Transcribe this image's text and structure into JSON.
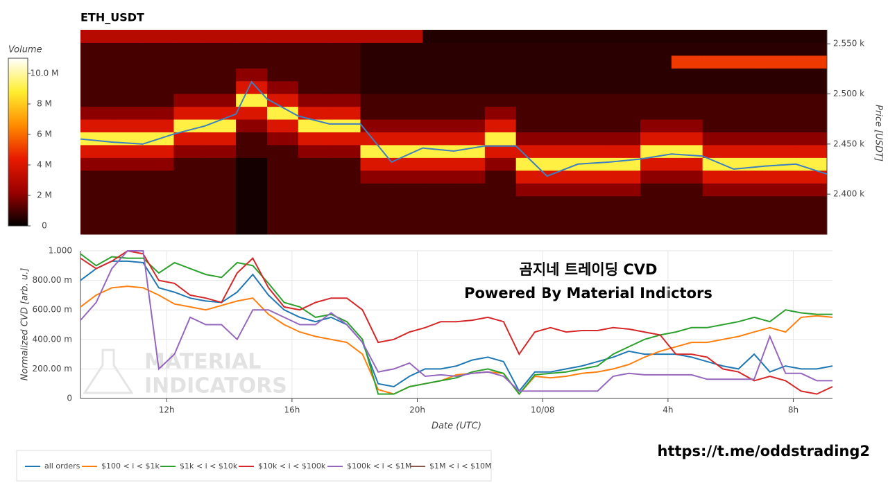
{
  "chart_data": [
    {
      "type": "heatmap",
      "title": "ETH_USDT",
      "y_label": "Price [USDT]",
      "colorbar_title": "Volume",
      "x_bins": [
        9.25,
        10.25,
        11.25,
        12.25,
        13.25,
        14.25,
        15.25,
        16.25,
        17.25,
        18.25,
        19.25,
        20.25,
        21.25,
        22.25,
        23.25,
        24.25,
        25.25,
        26.25,
        27.25,
        28.25,
        29.25,
        30.25,
        31.25,
        32.25,
        33.25
      ],
      "y_bins": [
        2360,
        2372.75,
        2385.5,
        2398.25,
        2411,
        2423.75,
        2436.5,
        2449.25,
        2462,
        2474.75,
        2487.5,
        2500.25,
        2513,
        2525.75,
        2538.5,
        2551.25,
        2564
      ],
      "z": [
        [
          1,
          1,
          1,
          1,
          1,
          0.3,
          1,
          1,
          1,
          1,
          1,
          1,
          1,
          1,
          1,
          1,
          1,
          1,
          1,
          1,
          1,
          1,
          1,
          1
        ],
        [
          1,
          1,
          1,
          1,
          1,
          0.3,
          1,
          1,
          1,
          1,
          1,
          1,
          1,
          1,
          1,
          1,
          1,
          1,
          1,
          1,
          1,
          1,
          1,
          1
        ],
        [
          1,
          1,
          1,
          1,
          1,
          0.3,
          1,
          1,
          1,
          1,
          1,
          1,
          1,
          1,
          1,
          1,
          1,
          1,
          1,
          1,
          1,
          1,
          1,
          1
        ],
        [
          1,
          1,
          1,
          1,
          1,
          0.3,
          1,
          1,
          1,
          1,
          1,
          1,
          1,
          1,
          2,
          2,
          2,
          2,
          1,
          1,
          2,
          2,
          2,
          2
        ],
        [
          1,
          1,
          1,
          1,
          1,
          0.3,
          1,
          1,
          1,
          2,
          2,
          2,
          2,
          1,
          4,
          4,
          4,
          4,
          2,
          2,
          4,
          4,
          4,
          4
        ],
        [
          2,
          2,
          2,
          1,
          1,
          0.3,
          1,
          1,
          1,
          4,
          4,
          4,
          4,
          2,
          9,
          9,
          9,
          9,
          4,
          4,
          9,
          9,
          9,
          9
        ],
        [
          4,
          4,
          4,
          2,
          2,
          1,
          1,
          2,
          2,
          9,
          9,
          9,
          9,
          4,
          4,
          4,
          4,
          4,
          9,
          9,
          4,
          4,
          4,
          4
        ],
        [
          9,
          9,
          9,
          4,
          4,
          1,
          2,
          4,
          4,
          4,
          4,
          4,
          4,
          9,
          2,
          2,
          2,
          2,
          4,
          4,
          2,
          2,
          2,
          2
        ],
        [
          4,
          4,
          4,
          9,
          9,
          2,
          4,
          9,
          9,
          2,
          2,
          2,
          2,
          4,
          1,
          1,
          1,
          1,
          2,
          2,
          1,
          1,
          1,
          1
        ],
        [
          2,
          2,
          2,
          4,
          4,
          4,
          9,
          4,
          4,
          1,
          1,
          1,
          1,
          2,
          1,
          1,
          1,
          1,
          1,
          1,
          1,
          1,
          1,
          1
        ],
        [
          1,
          1,
          1,
          2,
          2,
          9,
          4,
          2,
          2,
          1,
          1,
          1,
          1,
          1,
          1,
          1,
          1,
          1,
          1,
          1,
          1,
          1,
          1,
          1
        ],
        [
          1,
          1,
          1,
          1,
          1,
          4,
          2,
          1,
          1,
          0.6,
          0.6,
          0.6,
          0.6,
          0.6,
          0.6,
          0.6,
          0.6,
          0.6,
          0.6,
          0.6,
          0.6,
          0.6,
          0.6,
          0.6
        ],
        [
          1,
          1,
          1,
          1,
          1,
          2,
          1,
          1,
          1,
          0.6,
          0.6,
          0.6,
          0.6,
          0.6,
          0.6,
          0.6,
          0.6,
          0.6,
          0.6,
          0.6,
          0.6,
          0.6,
          0.6,
          0.6
        ],
        [
          1,
          1,
          1,
          1,
          1,
          1,
          1,
          1,
          1,
          0.6,
          0.6,
          0.6,
          0.6,
          0.6,
          0.6,
          0.6,
          0.6,
          0.6,
          0.6,
          5,
          5,
          5,
          5,
          5
        ],
        [
          1,
          1,
          1,
          1,
          1,
          1,
          1,
          1,
          1,
          0.6,
          0.6,
          0.6,
          0.6,
          0.6,
          0.6,
          0.6,
          0.6,
          0.6,
          0.6,
          0.6,
          0.6,
          0.6,
          0.6,
          0.6
        ],
        [
          3,
          3,
          3,
          3,
          3,
          3,
          3,
          3,
          3,
          3,
          3,
          0.5,
          0.5,
          0.5,
          0.5,
          0.5,
          0.5,
          0.5,
          0.5,
          0.5,
          0.5,
          0.5,
          0.5,
          0.5
        ]
      ],
      "zlim": [
        0,
        11
      ],
      "zticks": [
        0,
        {
          "value": 2,
          "label": "2 M"
        },
        {
          "value": 4,
          "label": "4 M"
        },
        {
          "value": 6,
          "label": "6 M"
        },
        {
          "value": 8,
          "label": "8 M"
        },
        {
          "value": 10,
          "label": "10.0 M"
        }
      ],
      "colorscale": [
        "#000000",
        "#9a0000",
        "#e81a00",
        "#ff8c00",
        "#ffee30",
        "#ffffff"
      ],
      "ylim": [
        2360,
        2564
      ],
      "yticks": [
        {
          "value": 2400,
          "label": "2.400 k"
        },
        {
          "value": 2450,
          "label": "2.450 k"
        },
        {
          "value": 2500,
          "label": "2.500 k"
        },
        {
          "value": 2550,
          "label": "2.550 k"
        }
      ],
      "price_line": {
        "color": "#3d7fbf",
        "x": [
          9.25,
          10.25,
          11.25,
          12.25,
          13.25,
          14.25,
          14.75,
          15.25,
          16.25,
          17.25,
          18.25,
          19.25,
          20.25,
          21.25,
          22.25,
          23.25,
          24.25,
          25.25,
          26.25,
          27.25,
          28.25,
          29.25,
          30.25,
          31.25,
          32.25,
          33.25
        ],
        "values": [
          2455,
          2452,
          2450,
          2460,
          2468,
          2480,
          2512,
          2495,
          2478,
          2470,
          2470,
          2432,
          2446,
          2443,
          2448,
          2448,
          2418,
          2430,
          2432,
          2435,
          2440,
          2438,
          2425,
          2428,
          2430,
          2420
        ]
      }
    },
    {
      "type": "line",
      "y_label": "Normalized CVD [arb. u.]",
      "x_label": "Date (UTC)",
      "annotations": [
        "곰지네 트레이딩 CVD",
        "Powered By Material Indictors"
      ],
      "watermark": [
        "MATERIAL",
        "INDICATORS"
      ],
      "xlim": [
        9.25,
        33.25
      ],
      "xticks": [
        {
          "value": 12,
          "label": "12h"
        },
        {
          "value": 16,
          "label": "16h"
        },
        {
          "value": 20,
          "label": "20h"
        },
        {
          "value": 24,
          "label": "10/08"
        },
        {
          "value": 28,
          "label": "4h"
        },
        {
          "value": 32,
          "label": "8h"
        }
      ],
      "ylim": [
        0,
        1
      ],
      "yticks": [
        0,
        {
          "value": 0.2,
          "label": "200.00 m"
        },
        {
          "value": 0.4,
          "label": "400.00 m"
        },
        {
          "value": 0.6,
          "label": "600.00 m"
        },
        {
          "value": 0.8,
          "label": "800.00 m"
        },
        {
          "value": 1,
          "label": "1.000"
        }
      ],
      "grid": true,
      "x": [
        9.25,
        9.75,
        10.25,
        10.75,
        11.25,
        11.75,
        12.25,
        12.75,
        13.25,
        13.75,
        14.25,
        14.75,
        15.25,
        15.75,
        16.25,
        16.75,
        17.25,
        17.75,
        18.25,
        18.75,
        19.25,
        19.75,
        20.25,
        20.75,
        21.25,
        21.75,
        22.25,
        22.75,
        23.25,
        23.75,
        24.25,
        24.75,
        25.25,
        25.75,
        26.25,
        26.75,
        27.25,
        27.75,
        28.25,
        28.75,
        29.25,
        29.75,
        30.25,
        30.75,
        31.25,
        31.75,
        32.25,
        32.75,
        33.25
      ],
      "series": [
        {
          "name": "all orders",
          "color": "#1f77b4",
          "values": [
            0.8,
            0.88,
            0.93,
            0.93,
            0.92,
            0.75,
            0.72,
            0.68,
            0.66,
            0.65,
            0.72,
            0.84,
            0.7,
            0.6,
            0.55,
            0.52,
            0.55,
            0.5,
            0.38,
            0.1,
            0.08,
            0.15,
            0.2,
            0.2,
            0.22,
            0.26,
            0.28,
            0.25,
            0.05,
            0.18,
            0.18,
            0.2,
            0.22,
            0.25,
            0.28,
            0.32,
            0.3,
            0.3,
            0.3,
            0.28,
            0.25,
            0.22,
            0.2,
            0.3,
            0.18,
            0.22,
            0.2,
            0.2,
            0.22
          ]
        },
        {
          "name": "$100 < i < $1k",
          "color": "#ff7f0e",
          "values": [
            0.62,
            0.7,
            0.75,
            0.76,
            0.75,
            0.7,
            0.64,
            0.62,
            0.6,
            0.63,
            0.66,
            0.68,
            0.57,
            0.5,
            0.45,
            0.42,
            0.4,
            0.38,
            0.3,
            0.06,
            0.03,
            0.08,
            0.1,
            0.12,
            0.16,
            0.17,
            0.18,
            0.17,
            0.03,
            0.15,
            0.14,
            0.15,
            0.17,
            0.18,
            0.2,
            0.23,
            0.28,
            0.32,
            0.35,
            0.38,
            0.38,
            0.4,
            0.42,
            0.45,
            0.48,
            0.45,
            0.55,
            0.56,
            0.55
          ]
        },
        {
          "name": "$1k < i < $10k",
          "color": "#2ca02c",
          "values": [
            0.98,
            0.9,
            0.96,
            0.95,
            0.95,
            0.85,
            0.92,
            0.88,
            0.84,
            0.82,
            0.92,
            0.9,
            0.78,
            0.65,
            0.62,
            0.55,
            0.57,
            0.52,
            0.4,
            0.03,
            0.03,
            0.08,
            0.1,
            0.12,
            0.14,
            0.18,
            0.2,
            0.17,
            0.03,
            0.16,
            0.17,
            0.18,
            0.2,
            0.22,
            0.3,
            0.35,
            0.4,
            0.43,
            0.45,
            0.48,
            0.48,
            0.5,
            0.52,
            0.55,
            0.52,
            0.6,
            0.58,
            0.57,
            0.57
          ]
        },
        {
          "name": "$10k < i < $100k",
          "color": "#d62728",
          "values": [
            0.95,
            0.88,
            0.93,
            1,
            0.98,
            0.8,
            0.78,
            0.7,
            0.68,
            0.65,
            0.85,
            0.95,
            0.75,
            0.62,
            0.6,
            0.65,
            0.68,
            0.68,
            0.6,
            0.38,
            0.4,
            0.45,
            0.48,
            0.52,
            0.52,
            0.53,
            0.55,
            0.52,
            0.3,
            0.45,
            0.48,
            0.45,
            0.46,
            0.46,
            0.48,
            0.47,
            0.45,
            0.43,
            0.3,
            0.3,
            0.28,
            0.2,
            0.18,
            0.12,
            0.15,
            0.12,
            0.05,
            0.03,
            0.08
          ]
        },
        {
          "name": "$100k < i < $1M",
          "color": "#9467bd",
          "values": [
            0.53,
            0.65,
            0.88,
            1,
            1,
            0.2,
            0.3,
            0.55,
            0.5,
            0.5,
            0.4,
            0.6,
            0.6,
            0.55,
            0.5,
            0.5,
            0.58,
            0.5,
            0.38,
            0.18,
            0.2,
            0.24,
            0.15,
            0.16,
            0.15,
            0.17,
            0.18,
            0.15,
            0.05,
            0.05,
            0.05,
            0.05,
            0.05,
            0.05,
            0.15,
            0.17,
            0.16,
            0.16,
            0.16,
            0.16,
            0.13,
            0.13,
            0.13,
            0.13,
            0.42,
            0.17,
            0.17,
            0.12,
            0.12
          ]
        },
        {
          "name": "$1M < i < $10M",
          "color": "#8c564b",
          "values": [
            null,
            null,
            null,
            null,
            null,
            null,
            null,
            null,
            null,
            null,
            null,
            null,
            null,
            null,
            null,
            null,
            null,
            null,
            null,
            null,
            null,
            null,
            null,
            null,
            null,
            null,
            null,
            null,
            null,
            null,
            null,
            null,
            null,
            null,
            null,
            null,
            null,
            null,
            null,
            null,
            null,
            null,
            null,
            null,
            null,
            null,
            null,
            null,
            null
          ]
        }
      ]
    }
  ],
  "footer": "https://t.me/oddstrading2"
}
